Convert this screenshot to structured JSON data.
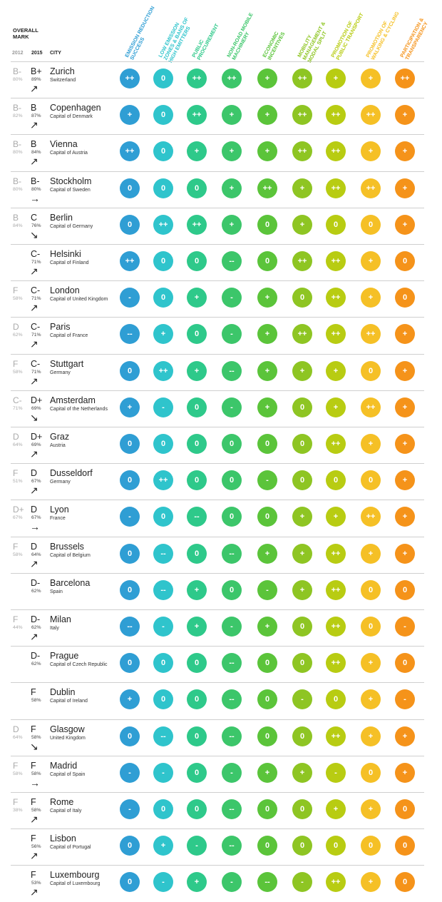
{
  "header": {
    "overall_mark": "OVERALL MARK",
    "year_2012": "2012",
    "year_2015": "2015",
    "city_label": "CITY"
  },
  "columns": [
    {
      "lines": [
        "EMISSION REDUCTION",
        "SUCCESS"
      ],
      "color": "#2f9ed4"
    },
    {
      "lines": [
        "LOW EMISSION",
        "ZONES & BANS OF",
        "HIGH EMITTERS"
      ],
      "color": "#2fc4cc"
    },
    {
      "lines": [
        "PUBLIC",
        "PROCUREMENT"
      ],
      "color": "#2ec98a"
    },
    {
      "lines": [
        "NON-ROAD MOBILE",
        "MACHINERY"
      ],
      "color": "#3cc66a"
    },
    {
      "lines": [
        "ECONOMIC",
        "INCENTIVES"
      ],
      "color": "#5bc43a"
    },
    {
      "lines": [
        "MOBILITY",
        "MANAGEMENT &",
        "MODAL SPLIT"
      ],
      "color": "#8ec523"
    },
    {
      "lines": [
        "PROMOTION OF",
        "PUBLIC TRANSPORT"
      ],
      "color": "#b8cc12"
    },
    {
      "lines": [
        "PROMOTION OF",
        "WALKING & CYCLING"
      ],
      "color": "#f5c026"
    },
    {
      "lines": [
        "PARTICIPATION &",
        "TRANSPARENCY"
      ],
      "color": "#f5931a"
    }
  ],
  "rows": [
    {
      "old": "B-",
      "old_pct": "80%",
      "new": "B+",
      "new_pct": "89%",
      "trend": "↗",
      "city": "Zurich",
      "sub": "Switzerland",
      "scores": [
        "++",
        "0",
        "++",
        "++",
        "+",
        "++",
        "+",
        "+",
        "++"
      ]
    },
    {
      "old": "B-",
      "old_pct": "82%",
      "new": "B",
      "new_pct": "87%",
      "trend": "↗",
      "city": "Copenhagen",
      "sub": "Capital of Denmark",
      "scores": [
        "+",
        "0",
        "++",
        "+",
        "+",
        "++",
        "++",
        "++",
        "+"
      ]
    },
    {
      "old": "B-",
      "old_pct": "80%",
      "new": "B",
      "new_pct": "84%",
      "trend": "↗",
      "city": "Vienna",
      "sub": "Capital of Austria",
      "scores": [
        "++",
        "0",
        "+",
        "+",
        "+",
        "++",
        "++",
        "+",
        "+"
      ]
    },
    {
      "old": "B-",
      "old_pct": "80%",
      "new": "B-",
      "new_pct": "80%",
      "trend": "→",
      "city": "Stockholm",
      "sub": "Capital of Sweden",
      "scores": [
        "0",
        "0",
        "0",
        "+",
        "++",
        "+",
        "++",
        "++",
        "+"
      ]
    },
    {
      "old": "B",
      "old_pct": "84%",
      "new": "C",
      "new_pct": "76%",
      "trend": "↘",
      "city": "Berlin",
      "sub": "Capital of Germany",
      "scores": [
        "0",
        "++",
        "++",
        "+",
        "0",
        "+",
        "0",
        "0",
        "+"
      ]
    },
    {
      "old": "",
      "old_pct": "",
      "new": "C-",
      "new_pct": "71%",
      "trend": "↗",
      "city": "Helsinki",
      "sub": "Capital of Finland",
      "scores": [
        "++",
        "0",
        "0",
        "--",
        "0",
        "++",
        "++",
        "+",
        "0"
      ]
    },
    {
      "old": "F",
      "old_pct": "58%",
      "new": "C-",
      "new_pct": "71%",
      "trend": "↗",
      "city": "London",
      "sub": "Capital of United Kingdom",
      "scores": [
        "-",
        "0",
        "+",
        "-",
        "+",
        "0",
        "++",
        "+",
        "0"
      ]
    },
    {
      "old": "D",
      "old_pct": "62%",
      "new": "C-",
      "new_pct": "71%",
      "trend": "↗",
      "city": "Paris",
      "sub": "Capital of France",
      "scores": [
        "--",
        "+",
        "0",
        "-",
        "+",
        "++",
        "++",
        "++",
        "+"
      ]
    },
    {
      "old": "F",
      "old_pct": "58%",
      "new": "C-",
      "new_pct": "71%",
      "trend": "↗",
      "city": "Stuttgart",
      "sub": "Germany",
      "scores": [
        "0",
        "++",
        "+",
        "--",
        "+",
        "+",
        "+",
        "0",
        "+"
      ]
    },
    {
      "old": "C-",
      "old_pct": "71%",
      "new": "D+",
      "new_pct": "69%",
      "trend": "↘",
      "city": "Amsterdam",
      "sub": "Capital of the Netherlands",
      "scores": [
        "+",
        "-",
        "0",
        "-",
        "+",
        "0",
        "+",
        "++",
        "+"
      ]
    },
    {
      "old": "D",
      "old_pct": "64%",
      "new": "D+",
      "new_pct": "69%",
      "trend": "↗",
      "city": "Graz",
      "sub": "Austria",
      "scores": [
        "0",
        "0",
        "0",
        "0",
        "0",
        "0",
        "++",
        "+",
        "+"
      ]
    },
    {
      "old": "F",
      "old_pct": "51%",
      "new": "D",
      "new_pct": "67%",
      "trend": "↗",
      "city": "Dusseldorf",
      "sub": "Germany",
      "scores": [
        "0",
        "++",
        "0",
        "0",
        "-",
        "0",
        "0",
        "0",
        "+"
      ]
    },
    {
      "old": "D+",
      "old_pct": "67%",
      "new": "D",
      "new_pct": "67%",
      "trend": "→",
      "city": "Lyon",
      "sub": "France",
      "scores": [
        "-",
        "0",
        "--",
        "0",
        "0",
        "+",
        "+",
        "++",
        "+"
      ]
    },
    {
      "old": "F",
      "old_pct": "58%",
      "new": "D",
      "new_pct": "64%",
      "trend": "↗",
      "city": "Brussels",
      "sub": "Capital of Belgium",
      "scores": [
        "0",
        "--",
        "0",
        "--",
        "+",
        "+",
        "++",
        "+",
        "+"
      ]
    },
    {
      "old": "",
      "old_pct": "",
      "new": "D-",
      "new_pct": "62%",
      "trend": "",
      "city": "Barcelona",
      "sub": "Spain",
      "scores": [
        "0",
        "--",
        "+",
        "0",
        "-",
        "+",
        "++",
        "0",
        "0"
      ]
    },
    {
      "old": "F",
      "old_pct": "44%",
      "new": "D-",
      "new_pct": "62%",
      "trend": "↗",
      "city": "Milan",
      "sub": "Italy",
      "scores": [
        "--",
        "-",
        "+",
        "-",
        "+",
        "0",
        "++",
        "0",
        "-"
      ]
    },
    {
      "old": "",
      "old_pct": "",
      "new": "D-",
      "new_pct": "62%",
      "trend": "",
      "city": "Prague",
      "sub": "Capital of Czech Republic",
      "scores": [
        "0",
        "0",
        "0",
        "--",
        "0",
        "0",
        "++",
        "+",
        "0"
      ]
    },
    {
      "old": "",
      "old_pct": "",
      "new": "F",
      "new_pct": "58%",
      "trend": "",
      "city": "Dublin",
      "sub": "Capital of Ireland",
      "scores": [
        "+",
        "0",
        "0",
        "--",
        "0",
        "-",
        "0",
        "+",
        "-"
      ]
    },
    {
      "old": "D",
      "old_pct": "64%",
      "new": "F",
      "new_pct": "58%",
      "trend": "↘",
      "city": "Glasgow",
      "sub": "United Kingdom",
      "scores": [
        "0",
        "--",
        "0",
        "--",
        "0",
        "0",
        "++",
        "+",
        "+"
      ]
    },
    {
      "old": "F",
      "old_pct": "58%",
      "new": "F",
      "new_pct": "58%",
      "trend": "→",
      "city": "Madrid",
      "sub": "Capital of Spain",
      "scores": [
        "-",
        "-",
        "0",
        "-",
        "+",
        "+",
        "-",
        "0",
        "+"
      ]
    },
    {
      "old": "F",
      "old_pct": "38%",
      "new": "F",
      "new_pct": "58%",
      "trend": "↗",
      "city": "Rome",
      "sub": "Capital of Italy",
      "scores": [
        "-",
        "0",
        "0",
        "--",
        "0",
        "0",
        "+",
        "+",
        "0"
      ]
    },
    {
      "old": "",
      "old_pct": "",
      "new": "F",
      "new_pct": "56%",
      "trend": "↗",
      "city": "Lisbon",
      "sub": "Capital of Portugal",
      "scores": [
        "0",
        "+",
        "-",
        "--",
        "0",
        "0",
        "0",
        "0",
        "0"
      ]
    },
    {
      "old": "",
      "old_pct": "",
      "new": "F",
      "new_pct": "53%",
      "trend": "↗",
      "city": "Luxembourg",
      "sub": "Capital of Luxembourg",
      "scores": [
        "0",
        "-",
        "+",
        "-",
        "--",
        "-",
        "++",
        "+",
        "0"
      ]
    }
  ]
}
